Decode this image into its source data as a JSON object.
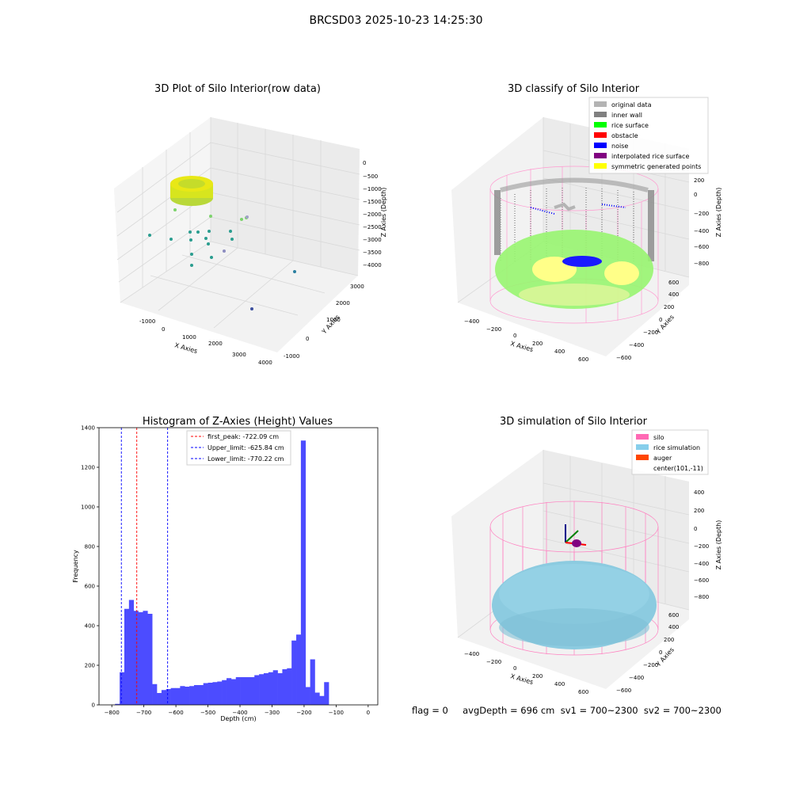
{
  "suptitle": "BRCSD03 2025-10-23 14:25:30",
  "panels": {
    "raw": {
      "title": "3D Plot of Silo Interior(row data)",
      "xlabel": "X Axies",
      "ylabel": "Y Axies",
      "zlabel": "Z Axies (Depth)",
      "xticks": [
        "-1000",
        "0",
        "1000",
        "2000",
        "3000",
        "4000"
      ],
      "yticks": [
        "-1000",
        "0",
        "1000",
        "2000",
        "3000"
      ],
      "zticks": [
        "0",
        "−500",
        "−1000",
        "−1500",
        "−2000",
        "−2500",
        "−3000",
        "−3500",
        "−4000"
      ]
    },
    "classify": {
      "title": "3D classify of Silo Interior",
      "xlabel": "X Axies",
      "ylabel": "Y Axies",
      "zlabel": "Z Axies (Depth)",
      "xticks": [
        "−400",
        "−200",
        "0",
        "200",
        "400",
        "600"
      ],
      "yticks": [
        "−600",
        "−400",
        "−200",
        "0",
        "200",
        "400",
        "600"
      ],
      "zticks": [
        "200",
        "0",
        "−200",
        "−400",
        "−600",
        "−800"
      ],
      "legend": [
        {
          "label": "original data",
          "color": "#b4b4b4"
        },
        {
          "label": "inner wall",
          "color": "#808080"
        },
        {
          "label": "rice surface",
          "color": "#00ff00"
        },
        {
          "label": "obstacle",
          "color": "#ff0000"
        },
        {
          "label": "noise",
          "color": "#0000ff"
        },
        {
          "label": "interpolated rice surface",
          "color": "#800080"
        },
        {
          "label": "symmetric generated points",
          "color": "#ffff00"
        }
      ]
    },
    "simulation": {
      "title": "3D simulation of Silo Interior",
      "xlabel": "X Axies",
      "ylabel": "Y Axies",
      "zlabel": "Z Axies (Depth)",
      "xticks": [
        "−400",
        "−200",
        "0",
        "200",
        "400",
        "600"
      ],
      "yticks": [
        "−600",
        "−400",
        "−200",
        "0",
        "200",
        "400",
        "600"
      ],
      "zticks": [
        "400",
        "200",
        "0",
        "−200",
        "−400",
        "−600",
        "−800"
      ],
      "legend": [
        {
          "label": "silo",
          "color": "#ff69b4"
        },
        {
          "label": "rice simulation",
          "color": "#87ceeb"
        },
        {
          "label": "auger",
          "color": "#ff4500"
        },
        {
          "label": "center(101,-11)",
          "color": ""
        }
      ]
    }
  },
  "footer": "flag = 0     avgDepth = 696 cm  sv1 = 700~2300  sv2 = 700~2300",
  "chart_data": [
    {
      "type": "scatter",
      "title": "3D Plot of Silo Interior(row data)",
      "xlabel": "X Axies",
      "ylabel": "Y Axies",
      "zlabel": "Z Axies (Depth)"
    },
    {
      "type": "scatter",
      "title": "3D classify of Silo Interior",
      "xlabel": "X Axies",
      "ylabel": "Y Axies",
      "zlabel": "Z Axies (Depth)"
    },
    {
      "type": "bar",
      "title": "Histogram of Z-Axies (Height) Values",
      "xlabel": "Depth (cm)",
      "ylabel": "Frequency",
      "xlim": [
        -840,
        30
      ],
      "ylim": [
        0,
        1400
      ],
      "xticks": [
        "−800",
        "−700",
        "−600",
        "−500",
        "−400",
        "−300",
        "−200",
        "−100",
        "0"
      ],
      "yticks": [
        "0",
        "200",
        "400",
        "600",
        "800",
        "1000",
        "1200",
        "1400"
      ],
      "bar_color": "#4c4cff",
      "bin_width": 14.5,
      "bin_start": -790,
      "values": [
        5,
        165,
        485,
        530,
        475,
        468,
        475,
        460,
        105,
        60,
        75,
        80,
        85,
        85,
        95,
        92,
        95,
        100,
        100,
        110,
        112,
        115,
        118,
        125,
        135,
        130,
        140,
        140,
        140,
        140,
        150,
        155,
        160,
        165,
        175,
        160,
        180,
        185,
        325,
        355,
        1335,
        90,
        230,
        62,
        45,
        115
      ],
      "vlines": [
        {
          "label": "first_peak: -722.09 cm",
          "x": -722.09,
          "color": "#ff0000"
        },
        {
          "label": "Upper_limit: -625.84 cm",
          "x": -625.84,
          "color": "#0000ff"
        },
        {
          "label": "Lower_limit: -770.22 cm",
          "x": -770.22,
          "color": "#0000ff"
        }
      ],
      "legend_position": "top-center"
    },
    {
      "type": "scatter",
      "title": "3D simulation of Silo Interior",
      "xlabel": "X Axies",
      "ylabel": "Y Axies",
      "zlabel": "Z Axies (Depth)"
    }
  ]
}
